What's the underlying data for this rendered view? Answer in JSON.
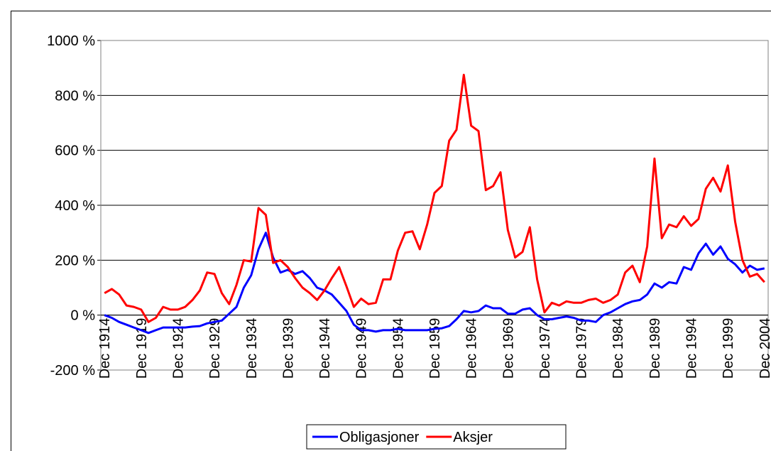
{
  "chart_data": {
    "type": "line",
    "categories": [
      "Dec 1914",
      null,
      null,
      null,
      null,
      "Dec 1919",
      null,
      null,
      null,
      null,
      "Dec 1924",
      null,
      null,
      null,
      null,
      "Dec 1929",
      null,
      null,
      null,
      null,
      "Dec 1934",
      null,
      null,
      null,
      null,
      "Dec 1939",
      null,
      null,
      null,
      null,
      "Dec 1944",
      null,
      null,
      null,
      null,
      "Dec 1949",
      null,
      null,
      null,
      null,
      "Dec 1954",
      null,
      null,
      null,
      null,
      "Dec 1959",
      null,
      null,
      null,
      null,
      "Dec 1964",
      null,
      null,
      null,
      null,
      "Dec 1969",
      null,
      null,
      null,
      null,
      "Dec 1974",
      null,
      null,
      null,
      null,
      "Dec 1979",
      null,
      null,
      null,
      null,
      "Dec 1984",
      null,
      null,
      null,
      null,
      "Dec 1989",
      null,
      null,
      null,
      null,
      "Dec 1994",
      null,
      null,
      null,
      null,
      "Dec 1999",
      null,
      null,
      null,
      null,
      "Dec 2004"
    ],
    "series": [
      {
        "name": "Obligasjoner",
        "color": "#0000ff",
        "values": [
          0,
          -10,
          -25,
          -35,
          -45,
          -55,
          -65,
          -55,
          -45,
          -45,
          -45,
          -45,
          -42,
          -40,
          -30,
          -25,
          -20,
          5,
          30,
          100,
          145,
          240,
          300,
          210,
          155,
          165,
          150,
          160,
          135,
          100,
          90,
          75,
          45,
          15,
          -35,
          -55,
          -55,
          -60,
          -55,
          -55,
          -50,
          -55,
          -55,
          -55,
          -55,
          -50,
          -48,
          -40,
          -15,
          15,
          10,
          15,
          35,
          25,
          25,
          5,
          5,
          20,
          25,
          0,
          -15,
          -15,
          -10,
          -5,
          -10,
          -20,
          -20,
          -25,
          0,
          10,
          25,
          40,
          50,
          55,
          75,
          115,
          100,
          120,
          115,
          175,
          165,
          225,
          260,
          220,
          250,
          205,
          185,
          155,
          180,
          165,
          170
        ]
      },
      {
        "name": "Aksjer",
        "color": "#ff0000",
        "values": [
          80,
          95,
          75,
          35,
          30,
          20,
          -25,
          -10,
          30,
          20,
          20,
          30,
          55,
          90,
          155,
          150,
          80,
          40,
          110,
          200,
          195,
          390,
          365,
          190,
          200,
          175,
          135,
          100,
          80,
          55,
          90,
          135,
          175,
          105,
          30,
          60,
          40,
          45,
          130,
          130,
          235,
          300,
          305,
          240,
          330,
          445,
          470,
          635,
          675,
          875,
          690,
          670,
          455,
          470,
          520,
          310,
          210,
          230,
          320,
          130,
          10,
          45,
          35,
          50,
          45,
          45,
          55,
          60,
          45,
          55,
          75,
          155,
          180,
          120,
          250,
          570,
          280,
          330,
          320,
          360,
          325,
          350,
          460,
          500,
          450,
          545,
          340,
          200,
          140,
          150,
          120
        ]
      }
    ],
    "ylim": [
      -200,
      1000
    ],
    "yticks": [
      {
        "value": -200,
        "label": "-200 %"
      },
      {
        "value": 0,
        "label": "0 %"
      },
      {
        "value": 200,
        "label": "200 %"
      },
      {
        "value": 400,
        "label": "400 %"
      },
      {
        "value": 600,
        "label": "600 %"
      },
      {
        "value": 800,
        "label": "800 %"
      },
      {
        "value": 1000,
        "label": "1000 %"
      }
    ],
    "grid": true,
    "legend": "bottom"
  }
}
